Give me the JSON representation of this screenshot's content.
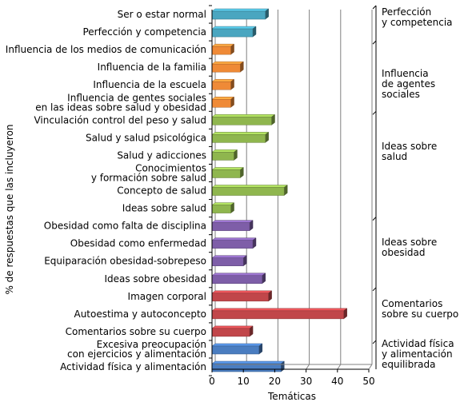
{
  "chart_data": {
    "type": "bar",
    "orientation": "horizontal",
    "xlabel": "Temáticas",
    "ylabel": "% de respuestas que las incluyeron",
    "xlim": [
      0,
      50
    ],
    "xticks": [
      0,
      10,
      20,
      30,
      40,
      50
    ],
    "grid": "vertical",
    "categories": [
      "Ser o estar normal",
      "Perfección y competencia",
      "Influencia de los medios de comunicación",
      "Influencia de la familia",
      "Influencia de la escuela",
      "Influencia de gentes sociales\nen las ideas sobre salud y obesidad",
      "Vinculación control del peso y salud",
      "Salud y salud psicológica",
      "Salud y adicciones",
      "Conocimientos\ny formación sobre salud",
      "Concepto de salud",
      "Ideas sobre salud",
      "Obesidad como falta de disciplina",
      "Obesidad como enfermedad",
      "Equiparación obesidad-sobrepeso",
      "Ideas sobre obesidad",
      "Imagen corporal",
      "Autoestima y autoconcepto",
      "Comentarios sobre su cuerpo",
      "Excesiva preocupación\ncon ejercicios y alimentación",
      "Actividad física y alimentación"
    ],
    "values": [
      17,
      13,
      6,
      9,
      6,
      6,
      19,
      17,
      7,
      9,
      23,
      6,
      12,
      13,
      10,
      16,
      18,
      42,
      12,
      15,
      22
    ],
    "groups": [
      {
        "name": "Perfección\ny competencia",
        "color": "#4aa6c0",
        "from": 0,
        "to": 1
      },
      {
        "name": "Influencia\nde agentes\nsociales",
        "color": "#ef8a37",
        "from": 2,
        "to": 5
      },
      {
        "name": "Ideas sobre\nsalud",
        "color": "#8fb64e",
        "from": 6,
        "to": 11
      },
      {
        "name": "Ideas sobre\nobesidad",
        "color": "#7e5ea8",
        "from": 12,
        "to": 15
      },
      {
        "name": "Comentarios\nsobre su cuerpo",
        "color": "#c1464a",
        "from": 16,
        "to": 18
      },
      {
        "name": "Actividad física\ny alimentación\nequilibrada",
        "color": "#4a7dc0",
        "from": 19,
        "to": 20
      }
    ]
  }
}
